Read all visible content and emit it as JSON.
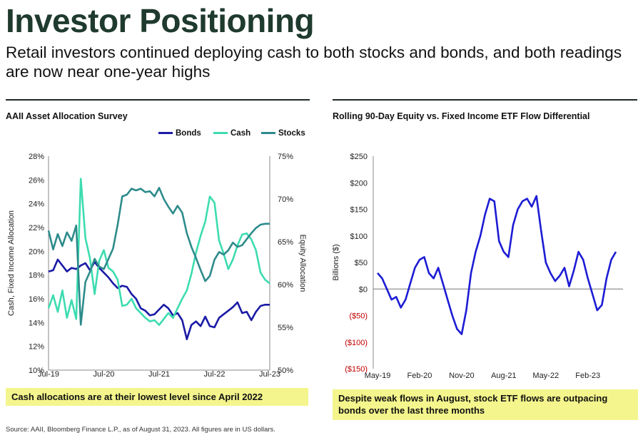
{
  "header": {
    "title": "Investor Positioning",
    "subtitle": "Retail investors continued deploying cash to both stocks and bonds, and both readings are now near one-year highs"
  },
  "left_panel": {
    "title": "AAII Asset Allocation Survey",
    "callout": "Cash allocations are at their lowest level since April 2022"
  },
  "right_panel": {
    "title": "Rolling 90-Day Equity vs. Fixed Income ETF Flow Differential",
    "callout": "Despite weak flows in August, stock ETF flows are outpacing bonds over the last three months"
  },
  "source": "Source: AAII, Bloomberg Finance L.P., as of August 31, 2023. All figures are in US dollars.",
  "colors": {
    "bonds": "#1a1aa6",
    "cash": "#3ddcb0",
    "stocks": "#2e8b8b",
    "flow": "#1c1cd4"
  },
  "chart_data": [
    {
      "type": "line",
      "ylabel": "Cash, Fixed Income Allocation",
      "y2label": "Equity Allocation",
      "ylim": [
        10,
        28
      ],
      "y2lim": [
        50,
        75
      ],
      "yticks": [
        "10%",
        "12%",
        "14%",
        "16%",
        "18%",
        "20%",
        "22%",
        "24%",
        "26%",
        "28%"
      ],
      "y2ticks": [
        "50%",
        "55%",
        "60%",
        "65%",
        "70%",
        "75%"
      ],
      "xticks": [
        "Jul-19",
        "Jul-20",
        "Jul-21",
        "Jul-22",
        "Jul-23"
      ],
      "legend_position": "top-right",
      "x": [
        "Jul-19",
        "Aug-19",
        "Sep-19",
        "Oct-19",
        "Nov-19",
        "Dec-19",
        "Jan-20",
        "Feb-20",
        "Mar-20",
        "Apr-20",
        "May-20",
        "Jun-20",
        "Jul-20",
        "Aug-20",
        "Sep-20",
        "Oct-20",
        "Nov-20",
        "Dec-20",
        "Jan-21",
        "Feb-21",
        "Mar-21",
        "Apr-21",
        "May-21",
        "Jun-21",
        "Jul-21",
        "Aug-21",
        "Sep-21",
        "Oct-21",
        "Nov-21",
        "Dec-21",
        "Jan-22",
        "Feb-22",
        "Mar-22",
        "Apr-22",
        "May-22",
        "Jun-22",
        "Jul-22",
        "Aug-22",
        "Sep-22",
        "Oct-22",
        "Nov-22",
        "Dec-22",
        "Jan-23",
        "Feb-23",
        "Mar-23",
        "Apr-23",
        "May-23",
        "Jun-23",
        "Jul-23"
      ],
      "series": [
        {
          "name": "Bonds",
          "axis": "left",
          "values": [
            18.3,
            18.4,
            19.3,
            18.8,
            18.3,
            18.6,
            18.5,
            18.8,
            19.0,
            18.4,
            19.1,
            18.6,
            18.2,
            17.8,
            17.3,
            16.9,
            17.1,
            17.0,
            16.4,
            16.0,
            15.2,
            15.0,
            14.6,
            14.7,
            15.1,
            15.5,
            15.2,
            14.6,
            14.8,
            14.2,
            12.6,
            13.8,
            14.1,
            13.7,
            14.5,
            13.7,
            13.6,
            14.4,
            14.7,
            15.0,
            15.3,
            15.7,
            14.8,
            14.9,
            14.2,
            14.9,
            15.4,
            15.5,
            15.5
          ]
        },
        {
          "name": "Cash",
          "axis": "left",
          "values": [
            15.2,
            16.3,
            14.9,
            16.7,
            14.4,
            15.9,
            14.3,
            26.1,
            21.1,
            19.4,
            16.4,
            19.2,
            20.1,
            18.6,
            18.3,
            17.6,
            15.4,
            15.5,
            16.0,
            15.2,
            14.8,
            14.4,
            14.1,
            14.2,
            13.8,
            14.3,
            14.8,
            14.4,
            15.2,
            16.0,
            16.7,
            18.1,
            19.9,
            21.3,
            22.5,
            24.6,
            24.1,
            20.9,
            19.8,
            18.5,
            19.3,
            20.5,
            21.4,
            21.5,
            21.0,
            20.1,
            18.2,
            17.6,
            17.3
          ]
        },
        {
          "name": "Stocks",
          "axis": "right",
          "values": [
            66.3,
            64.1,
            65.9,
            64.5,
            66.1,
            65.1,
            66.9,
            55.3,
            60.3,
            61.5,
            63.0,
            62.1,
            61.8,
            63.0,
            64.2,
            67.0,
            70.3,
            70.5,
            71.2,
            71.0,
            71.2,
            70.8,
            70.9,
            70.3,
            71.3,
            70.0,
            69.1,
            68.3,
            69.2,
            68.4,
            66.0,
            64.4,
            63.1,
            61.7,
            60.4,
            61.0,
            62.9,
            63.8,
            63.5,
            64.0,
            64.9,
            64.4,
            64.6,
            65.3,
            66.0,
            66.6,
            67.0,
            67.1,
            67.1
          ]
        }
      ]
    },
    {
      "type": "line",
      "ylabel": "Billions ($)",
      "ylim": [
        -150,
        250
      ],
      "yticks": [
        "($150)",
        "($100)",
        "($50)",
        "$0",
        "$50",
        "$100",
        "$150",
        "$200",
        "$250"
      ],
      "xticks": [
        "May-19",
        "Feb-20",
        "Nov-20",
        "Aug-21",
        "May-22",
        "Feb-23"
      ],
      "series": [
        {
          "name": "Flow Differential",
          "x": [
            "May-19",
            "Jun-19",
            "Jul-19",
            "Aug-19",
            "Sep-19",
            "Oct-19",
            "Nov-19",
            "Dec-19",
            "Jan-20",
            "Feb-20",
            "Mar-20",
            "Apr-20",
            "May-20",
            "Jun-20",
            "Jul-20",
            "Aug-20",
            "Sep-20",
            "Oct-20",
            "Nov-20",
            "Dec-20",
            "Jan-21",
            "Feb-21",
            "Mar-21",
            "Apr-21",
            "May-21",
            "Jun-21",
            "Jul-21",
            "Aug-21",
            "Sep-21",
            "Oct-21",
            "Nov-21",
            "Dec-21",
            "Jan-22",
            "Feb-22",
            "Mar-22",
            "Apr-22",
            "May-22",
            "Jun-22",
            "Jul-22",
            "Aug-22",
            "Sep-22",
            "Oct-22",
            "Nov-22",
            "Dec-22",
            "Jan-23",
            "Feb-23",
            "Mar-23",
            "Apr-23",
            "May-23",
            "Jun-23",
            "Jul-23",
            "Aug-23"
          ],
          "values": [
            30,
            20,
            0,
            -20,
            -15,
            -35,
            -20,
            10,
            40,
            55,
            60,
            30,
            20,
            40,
            10,
            -20,
            -50,
            -75,
            -85,
            -40,
            30,
            70,
            100,
            140,
            170,
            165,
            90,
            70,
            60,
            120,
            150,
            165,
            170,
            155,
            175,
            110,
            50,
            30,
            15,
            25,
            40,
            5,
            35,
            70,
            55,
            20,
            -10,
            -40,
            -30,
            20,
            55,
            70
          ]
        }
      ]
    }
  ]
}
